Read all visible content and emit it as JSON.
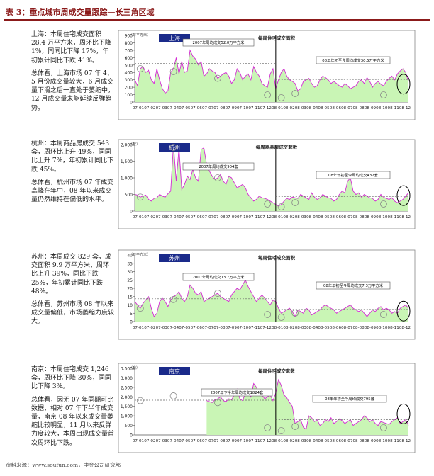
{
  "title": "表 3：重点城市周成交量跟踪—长三角区域",
  "footer": "资料来源：www.soufun.com，中金公司研究部",
  "sections": [
    {
      "id": "shanghai",
      "summary": "上海：本周住宅成交面积 28.4 万平方米，周环比下降 1%，同同比下降 17%，年初累计同比下跌 41%。",
      "comment": "总体看，上海市场 07 年 4、5 月份成交量较大，6 月成交量下滑之后一直处于萎缩中，12 月成交量未能延续反弹趋势。"
    },
    {
      "id": "hangzhou",
      "summary": "杭州：本周商品房成交 543 套，周环比上升 49%，同同比上升 7%，年初累计同比下跌 45%。",
      "comment": "总体看，杭州市场 07 年成交高峰在年中，08 年以来成交量仍然维持在偏低的水平。"
    },
    {
      "id": "suzhou",
      "summary": "苏州：本周成交 829 套，成交面积 9.9 万平方米，周环比上升 39%，同比下跌 25%，年初累计同比下跌 48%。",
      "comment": "总体看，苏州市场 08 年以来成交量偏低，市场萎缩力度较大。"
    },
    {
      "id": "nanjing",
      "summary": "南京：本周住宅成交 1,246 套，周环比下降 30%，同同比下降 3%。",
      "comment": "总体看，因无 07 年同期可比数据，相对 07 年下半年成交量，南京 08 年以来成交量萎缩比较明显，11 月以来反弹力度较大，本周出现成交量首次周环比下跌。"
    }
  ],
  "chart_data": [
    {
      "type": "area",
      "city_label": "上海",
      "chart_title": "每周住宅成交面积",
      "unit": "（万平方米）",
      "y_ticks": [
        "900",
        "800",
        "700",
        "600",
        "500",
        "400",
        "300",
        "200",
        "100",
        "0"
      ],
      "ylim": [
        0,
        90
      ],
      "x_ticks": [
        "07-01",
        "07-02",
        "07-03",
        "07-04",
        "07-05",
        "07-06",
        "07-07",
        "07-08",
        "07-09",
        "07-10",
        "07-11",
        "07-12",
        "08-01",
        "08-02",
        "08-03",
        "08-04",
        "08-05",
        "08-06",
        "08-07",
        "08-08",
        "08-09",
        "08-10",
        "08-11",
        "08-12"
      ],
      "avg_2007_label": "2007年周均成交52.0万平方米",
      "avg_2007": 52.0,
      "avg_2008_label": "08年年初至今周均成交30.5万平方米",
      "avg_2008": 30.5,
      "values": [
        30,
        22,
        45,
        48,
        40,
        43,
        30,
        25,
        45,
        30,
        18,
        12,
        15,
        40,
        45,
        60,
        38,
        55,
        40,
        42,
        70,
        62,
        58,
        50,
        55,
        35,
        38,
        45,
        42,
        40,
        32,
        35,
        38,
        40,
        35,
        25,
        30,
        45,
        40,
        30,
        35,
        38,
        30,
        48,
        40,
        35,
        25,
        22,
        20,
        38,
        45,
        18,
        30,
        40,
        45,
        35,
        30,
        28,
        25,
        15,
        18,
        28,
        30,
        32,
        25,
        20,
        22,
        30,
        35,
        33,
        30,
        25,
        28,
        25,
        22,
        20,
        25,
        22,
        18,
        20,
        22,
        28,
        30,
        25,
        33,
        28,
        20,
        25,
        28,
        24,
        22,
        28,
        32,
        35,
        30,
        38,
        42,
        45,
        40,
        28
      ]
    },
    {
      "type": "area",
      "city_label": "杭州",
      "chart_title": "每周商品房成交套数",
      "unit": "（套）",
      "y_ticks": [
        "2,000",
        "1,500",
        "1,000",
        "500",
        "0"
      ],
      "ylim": [
        0,
        2000
      ],
      "x_ticks": [
        "07-01",
        "07-02",
        "07-03",
        "07-04",
        "07-05",
        "07-06",
        "07-07",
        "07-08",
        "07-09",
        "07-10",
        "07-11",
        "07-12",
        "08-01",
        "08-02",
        "08-03",
        "08-04",
        "08-05",
        "08-06",
        "08-07",
        "08-08",
        "08-09",
        "08-10",
        "08-11",
        "08-12"
      ],
      "avg_2007_label": "2007年周均成交904套",
      "avg_2007": 904,
      "avg_2008_label": "08年年初至今周均成交437套",
      "avg_2008": 437,
      "values": [
        500,
        480,
        420,
        450,
        480,
        350,
        300,
        380,
        400,
        500,
        450,
        420,
        520,
        600,
        2000,
        900,
        1900,
        650,
        800,
        1050,
        950,
        1250,
        1000,
        900,
        1850,
        1900,
        1400,
        1200,
        1050,
        950,
        1000,
        1100,
        900,
        800,
        1050,
        1000,
        850,
        700,
        750,
        800,
        700,
        500,
        400,
        300,
        350,
        450,
        400,
        380,
        350,
        300,
        250,
        200,
        150,
        200,
        300,
        380,
        350,
        420,
        400,
        380,
        500,
        450,
        400,
        350,
        550,
        420,
        350,
        400,
        500,
        450,
        400,
        380,
        300,
        350,
        500,
        600,
        550,
        900,
        1000,
        600,
        500,
        550,
        420,
        500,
        450,
        400,
        380,
        300,
        350,
        500,
        420,
        380,
        350,
        400,
        300,
        250,
        300,
        350,
        450,
        550
      ]
    },
    {
      "type": "area",
      "city_label": "苏州",
      "chart_title": "每周住宅成交面积",
      "unit": "（万平方米）",
      "y_ticks": [
        "40",
        "35",
        "30",
        "25",
        "20",
        "15",
        "10",
        "5",
        "0"
      ],
      "ylim": [
        0,
        40
      ],
      "x_ticks": [
        "07-01",
        "07-02",
        "07-03",
        "07-04",
        "07-05",
        "07-06",
        "07-07",
        "07-08",
        "07-09",
        "07-10",
        "07-11",
        "07-12",
        "08-01",
        "08-02",
        "08-03",
        "08-04",
        "08-05",
        "08-06",
        "08-07",
        "08-08",
        "08-09",
        "08-10",
        "08-11",
        "08-12"
      ],
      "avg_2007_label": "2007年周均成交13.7万平方米",
      "avg_2007": 13.7,
      "avg_2008_label": "08年年初至今周均成交7.3万平方米",
      "avg_2008": 7.3,
      "values": [
        12,
        10,
        8,
        11,
        13,
        15,
        8,
        3,
        5,
        12,
        14,
        12,
        9,
        13,
        15,
        16,
        18,
        14,
        12,
        15,
        22,
        20,
        17,
        16,
        18,
        12,
        13,
        14,
        15,
        16,
        17,
        15,
        14,
        13,
        12,
        16,
        18,
        20,
        19,
        22,
        25,
        21,
        18,
        15,
        12,
        14,
        16,
        14,
        12,
        10,
        13,
        12,
        8,
        5,
        6,
        7,
        8,
        6,
        3,
        7,
        6,
        5,
        8,
        7,
        4,
        5,
        6,
        7,
        9,
        10,
        9,
        8,
        7,
        5,
        6,
        7,
        8,
        9,
        10,
        8,
        7,
        6,
        7,
        5,
        3,
        5,
        7,
        6,
        8,
        9,
        7,
        8,
        7,
        5,
        6,
        5,
        8,
        9,
        10,
        8
      ]
    },
    {
      "type": "area",
      "city_label": "南京",
      "chart_title": "每周住宅成交套数",
      "unit": "（套）",
      "y_ticks": [
        "3,500",
        "3,000",
        "2,500",
        "2,000",
        "1,500",
        "1,000",
        "500",
        "0"
      ],
      "ylim": [
        0,
        3500
      ],
      "x_ticks": [
        "07-01",
        "07-02",
        "07-03",
        "07-04",
        "07-05",
        "07-06",
        "07-07",
        "07-08",
        "07-09",
        "07-10",
        "07-11",
        "07-12",
        "08-01",
        "08-02",
        "08-03",
        "08-04",
        "08-05",
        "08-06",
        "08-07",
        "08-08",
        "08-09",
        "08-10",
        "08-11",
        "08-12"
      ],
      "avg_2007_label": "2007年下半年周均成交1824套",
      "avg_2007": 1824,
      "avg_2008_label": "08年年初至今周均成交795套",
      "avg_2008": 795,
      "start_index": 26,
      "values": [
        1800,
        1750,
        1700,
        1850,
        1900,
        2000,
        1800,
        1750,
        1900,
        1850,
        2100,
        2400,
        1900,
        1800,
        2200,
        2300,
        2000,
        2700,
        2500,
        2200,
        2100,
        1900,
        2000,
        2100,
        1800,
        2200,
        2900,
        2600,
        2100,
        1950,
        1700,
        1500,
        600,
        700,
        800,
        400,
        300,
        1000,
        900,
        700,
        800,
        500,
        600,
        800,
        700,
        900,
        600,
        700,
        850,
        750,
        600,
        700,
        800,
        500,
        600,
        700,
        800,
        1000,
        900,
        700,
        800,
        600,
        500,
        700,
        650,
        600,
        550,
        700,
        800,
        900,
        600,
        700,
        800,
        500,
        700,
        1300,
        1600,
        1800,
        1250
      ]
    }
  ]
}
